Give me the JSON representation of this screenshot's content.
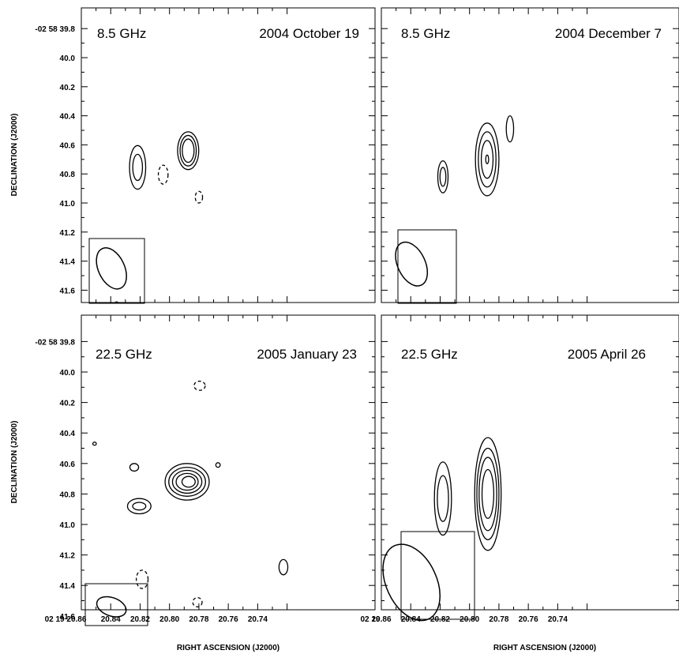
{
  "chart_data": [
    {
      "type": "contour",
      "frequency_label": "8.5 GHz",
      "date_label": "2004 October 19",
      "xlabel": "",
      "ylabel": "DECLINATION (J2000)",
      "ytick_labels": [
        "-02 58 39.8",
        "40.0",
        "40.2",
        "40.4",
        "40.6",
        "40.8",
        "41.0",
        "41.2",
        "41.4",
        "41.6"
      ],
      "xtick_labels": [],
      "xlim": [
        20.86,
        20.72
      ],
      "ylim": [
        41.7,
        39.7
      ],
      "beam": {
        "ra": 20.8395,
        "dec": 41.45,
        "major": 0.3,
        "minor": 0.18,
        "pa_deg": -25
      },
      "contours": [
        {
          "ra": 20.8217,
          "dec": 40.755,
          "rx": 0.0055,
          "ry": 0.15,
          "style": "solid"
        },
        {
          "ra": 20.8217,
          "dec": 40.755,
          "rx": 0.0033,
          "ry": 0.09,
          "style": "solid"
        },
        {
          "ra": 20.7873,
          "dec": 40.64,
          "rx": 0.0072,
          "ry": 0.13,
          "style": "solid"
        },
        {
          "ra": 20.7873,
          "dec": 40.64,
          "rx": 0.0055,
          "ry": 0.105,
          "style": "solid"
        },
        {
          "ra": 20.7873,
          "dec": 40.64,
          "rx": 0.004,
          "ry": 0.08,
          "style": "solid"
        },
        {
          "ra": 20.8043,
          "dec": 40.805,
          "rx": 0.0033,
          "ry": 0.065,
          "style": "dashed"
        },
        {
          "ra": 20.78,
          "dec": 40.96,
          "rx": 0.0025,
          "ry": 0.04,
          "style": "dashed"
        },
        {
          "ra": 20.836,
          "dec": 41.72,
          "rx": 0.002,
          "ry": 0.04,
          "style": "solid"
        }
      ]
    },
    {
      "type": "contour",
      "frequency_label": "8.5 GHz",
      "date_label": "2004 December 7",
      "xlabel": "",
      "ylabel": "",
      "ytick_labels": [],
      "xtick_labels": [],
      "xlim": [
        20.86,
        20.72
      ],
      "ylim": [
        41.7,
        39.7
      ],
      "beam": {
        "ra": 20.8395,
        "dec": 41.42,
        "major": 0.32,
        "minor": 0.19,
        "pa_deg": -25
      },
      "contours": [
        {
          "ra": 20.8181,
          "dec": 40.82,
          "rx": 0.0035,
          "ry": 0.11,
          "style": "solid"
        },
        {
          "ra": 20.8181,
          "dec": 40.82,
          "rx": 0.002,
          "ry": 0.065,
          "style": "solid"
        },
        {
          "ra": 20.788,
          "dec": 40.7,
          "rx": 0.008,
          "ry": 0.25,
          "style": "solid"
        },
        {
          "ra": 20.788,
          "dec": 40.7,
          "rx": 0.006,
          "ry": 0.19,
          "style": "solid"
        },
        {
          "ra": 20.788,
          "dec": 40.7,
          "rx": 0.004,
          "ry": 0.13,
          "style": "solid"
        },
        {
          "ra": 20.788,
          "dec": 40.7,
          "rx": 0.001,
          "ry": 0.03,
          "style": "solid"
        },
        {
          "ra": 20.7725,
          "dec": 40.49,
          "rx": 0.0025,
          "ry": 0.09,
          "style": "solid"
        }
      ]
    },
    {
      "type": "contour",
      "frequency_label": "22.5 GHz",
      "date_label": "2005 January 23",
      "xlabel": "RIGHT ASCENSION (J2000)",
      "ylabel": "DECLINATION (J2000)",
      "ytick_labels": [
        "-02 58 39.8",
        "40.0",
        "40.2",
        "40.4",
        "40.6",
        "40.8",
        "41.0",
        "41.2",
        "41.4",
        "41.6"
      ],
      "xtick_labels": [
        "02 19 20.86",
        "20.84",
        "20.82",
        "20.80",
        "20.78",
        "20.76",
        "20.74",
        "02 19"
      ],
      "xlim": [
        20.86,
        20.72
      ],
      "ylim": [
        41.7,
        39.7
      ],
      "beam": {
        "ra": 20.8395,
        "dec": 41.54,
        "major": 0.2,
        "minor": 0.12,
        "pa_deg": -70
      },
      "contours": [
        {
          "ra": 20.8206,
          "dec": 40.88,
          "rx": 0.008,
          "ry": 0.05,
          "style": "solid"
        },
        {
          "ra": 20.8206,
          "dec": 40.88,
          "rx": 0.0045,
          "ry": 0.025,
          "style": "solid"
        },
        {
          "ra": 20.824,
          "dec": 40.625,
          "rx": 0.003,
          "ry": 0.025,
          "style": "solid"
        },
        {
          "ra": 20.788,
          "dec": 40.72,
          "rx": 0.015,
          "ry": 0.12,
          "style": "solid"
        },
        {
          "ra": 20.788,
          "dec": 40.72,
          "rx": 0.0125,
          "ry": 0.095,
          "style": "solid"
        },
        {
          "ra": 20.788,
          "dec": 40.72,
          "rx": 0.01,
          "ry": 0.075,
          "style": "solid"
        },
        {
          "ra": 20.788,
          "dec": 40.72,
          "rx": 0.0075,
          "ry": 0.055,
          "style": "solid"
        },
        {
          "ra": 20.787,
          "dec": 40.72,
          "rx": 0.0045,
          "ry": 0.035,
          "style": "solid"
        },
        {
          "ra": 20.767,
          "dec": 40.61,
          "rx": 0.0015,
          "ry": 0.015,
          "style": "solid"
        },
        {
          "ra": 20.851,
          "dec": 40.47,
          "rx": 0.0012,
          "ry": 0.01,
          "style": "solid"
        },
        {
          "ra": 20.7795,
          "dec": 40.09,
          "rx": 0.0038,
          "ry": 0.03,
          "style": "dashed"
        },
        {
          "ra": 20.8186,
          "dec": 41.36,
          "rx": 0.004,
          "ry": 0.06,
          "style": "dashed"
        },
        {
          "ra": 20.781,
          "dec": 41.51,
          "rx": 0.0032,
          "ry": 0.03,
          "style": "dashed"
        },
        {
          "ra": 20.7225,
          "dec": 41.28,
          "rx": 0.003,
          "ry": 0.05,
          "style": "solid"
        }
      ]
    },
    {
      "type": "contour",
      "frequency_label": "22.5 GHz",
      "date_label": "2005 April 26",
      "xlabel": "RIGHT ASCENSION (J2000)",
      "ylabel": "",
      "ytick_labels": [],
      "xtick_labels": [
        "20.86",
        "20.84",
        "20.82",
        "20.80",
        "20.78",
        "20.76",
        "20.74"
      ],
      "xlim": [
        20.86,
        20.72
      ],
      "ylim": [
        41.7,
        39.7
      ],
      "beam": {
        "ra": 20.8395,
        "dec": 41.38,
        "major": 0.53,
        "minor": 0.33,
        "pa_deg": -25
      },
      "contours": [
        {
          "ra": 20.8181,
          "dec": 40.83,
          "rx": 0.0058,
          "ry": 0.24,
          "style": "solid"
        },
        {
          "ra": 20.8181,
          "dec": 40.83,
          "rx": 0.0038,
          "ry": 0.15,
          "style": "solid"
        },
        {
          "ra": 20.7875,
          "dec": 40.8,
          "rx": 0.009,
          "ry": 0.37,
          "style": "solid"
        },
        {
          "ra": 20.7875,
          "dec": 40.8,
          "rx": 0.0075,
          "ry": 0.3,
          "style": "solid"
        },
        {
          "ra": 20.7875,
          "dec": 40.8,
          "rx": 0.006,
          "ry": 0.24,
          "style": "solid"
        },
        {
          "ra": 20.7875,
          "dec": 40.8,
          "rx": 0.004,
          "ry": 0.16,
          "style": "solid"
        }
      ]
    }
  ]
}
